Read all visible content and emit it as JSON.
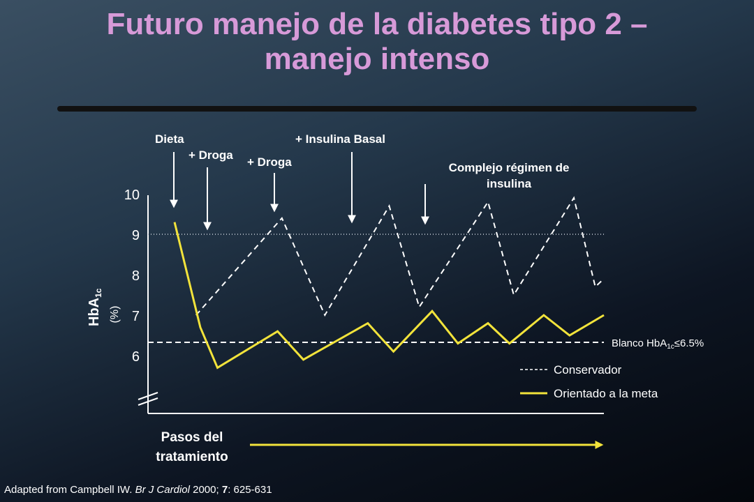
{
  "title": {
    "line1": "Futuro manejo de la diabetes tipo 2 –",
    "line2": "manejo intenso"
  },
  "source": {
    "prefix": "Adapted from Campbell IW.",
    "journal": "Br J Cardiol",
    "year": "2000;",
    "volume": "7",
    "pages": ": 625-631"
  },
  "colors": {
    "title": "#d79ad8",
    "goal_series": "#f2e33b",
    "conservative_series": "#ffffff",
    "axis": "#ffffff",
    "background": "#1d2e40"
  },
  "chart_data": {
    "type": "line",
    "ylabel_main": "HbA",
    "ylabel_sub": "1c",
    "ylabel_unit": "(%)",
    "yticks": [
      "10",
      "9",
      "8",
      "7",
      "6"
    ],
    "ylim": [
      5.0,
      10.0
    ],
    "xlabel_line1": "Pasos del",
    "xlabel_line2": "tratamiento",
    "target": {
      "label_prefix": "Blanco HbA",
      "label_sub": "1c",
      "label_suffix": "≤6.5%",
      "value": 6.5
    },
    "reference_line": 9.0,
    "series": [
      {
        "name": "Conservador",
        "style": "dashed",
        "points": [
          [
            0.05,
            7.0
          ],
          [
            0.25,
            9.4
          ],
          [
            0.35,
            7.0
          ],
          [
            0.5,
            9.7
          ],
          [
            0.57,
            7.2
          ],
          [
            0.73,
            9.8
          ],
          [
            0.79,
            7.5
          ],
          [
            0.93,
            9.9
          ],
          [
            0.98,
            7.7
          ],
          [
            1.0,
            7.9
          ]
        ]
      },
      {
        "name": "Orientado a la meta",
        "style": "solid",
        "points": [
          [
            0.0,
            9.3
          ],
          [
            0.06,
            6.7
          ],
          [
            0.1,
            5.7
          ],
          [
            0.24,
            6.6
          ],
          [
            0.3,
            5.9
          ],
          [
            0.45,
            6.8
          ],
          [
            0.51,
            6.1
          ],
          [
            0.6,
            7.1
          ],
          [
            0.66,
            6.3
          ],
          [
            0.73,
            6.8
          ],
          [
            0.78,
            6.3
          ],
          [
            0.86,
            7.0
          ],
          [
            0.92,
            6.5
          ],
          [
            1.0,
            7.0
          ]
        ]
      }
    ],
    "annotations": [
      {
        "text": "Dieta",
        "x": 0.0
      },
      {
        "text": "+ Droga",
        "x": 0.07
      },
      {
        "text": "+ Droga",
        "x": 0.23
      },
      {
        "text": "+ Insulina Basal",
        "x": 0.44
      },
      {
        "text": "Complejo régimen de insulina",
        "line1": "Complejo régimen de",
        "line2": "insulina",
        "x": 0.61
      }
    ],
    "legend": "bottom-right"
  }
}
